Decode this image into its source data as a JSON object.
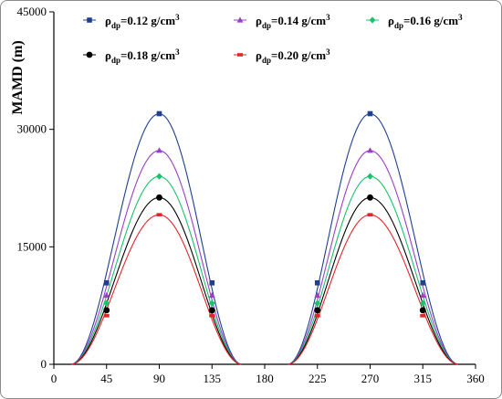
{
  "chart_data": {
    "type": "line",
    "title": "",
    "xlabel": "",
    "ylabel": "MAMD (m)",
    "xlim": [
      0,
      360
    ],
    "ylim": [
      0,
      45000
    ],
    "xticks": [
      0,
      45,
      90,
      135,
      180,
      225,
      270,
      315,
      360
    ],
    "yticks": [
      0,
      15000,
      30000,
      45000
    ],
    "x": [
      45,
      90,
      135,
      225,
      270,
      315
    ],
    "zeros": [
      15,
      160,
      200,
      345
    ],
    "legend_position": "top",
    "series": [
      {
        "name": "ρdp=0.12 g/cm3",
        "name_base": "ρ",
        "name_sub": "dp",
        "name_value": "=0.12 g/cm",
        "name_sup": "3",
        "color": "#1f3f8f",
        "marker": "square",
        "values": [
          10400,
          32000,
          10400,
          10400,
          32000,
          10400
        ]
      },
      {
        "name": "ρdp=0.14 g/cm3",
        "name_base": "ρ",
        "name_sub": "dp",
        "name_value": "=0.14 g/cm",
        "name_sup": "3",
        "color": "#9b40c6",
        "marker": "triangle",
        "values": [
          8800,
          27300,
          8800,
          8800,
          27300,
          8800
        ]
      },
      {
        "name": "ρdp=0.16 g/cm3",
        "name_base": "ρ",
        "name_sub": "dp",
        "name_value": "=0.16 g/cm",
        "name_sup": "3",
        "color": "#19c26b",
        "marker": "diamond",
        "values": [
          7800,
          24000,
          7800,
          7800,
          24000,
          7800
        ]
      },
      {
        "name": "ρdp=0.18 g/cm3",
        "name_base": "ρ",
        "name_sub": "dp",
        "name_value": "=0.18 g/cm",
        "name_sup": "3",
        "color": "#000000",
        "marker": "circle",
        "values": [
          6900,
          21300,
          6900,
          6900,
          21300,
          6900
        ]
      },
      {
        "name": "ρdp=0.20 g/cm3",
        "name_base": "ρ",
        "name_sub": "dp",
        "name_value": "=0.20 g/cm",
        "name_sup": "3",
        "color": "#e0262a",
        "marker": "dash",
        "values": [
          6200,
          19100,
          6200,
          6200,
          19100,
          6200
        ]
      }
    ]
  }
}
